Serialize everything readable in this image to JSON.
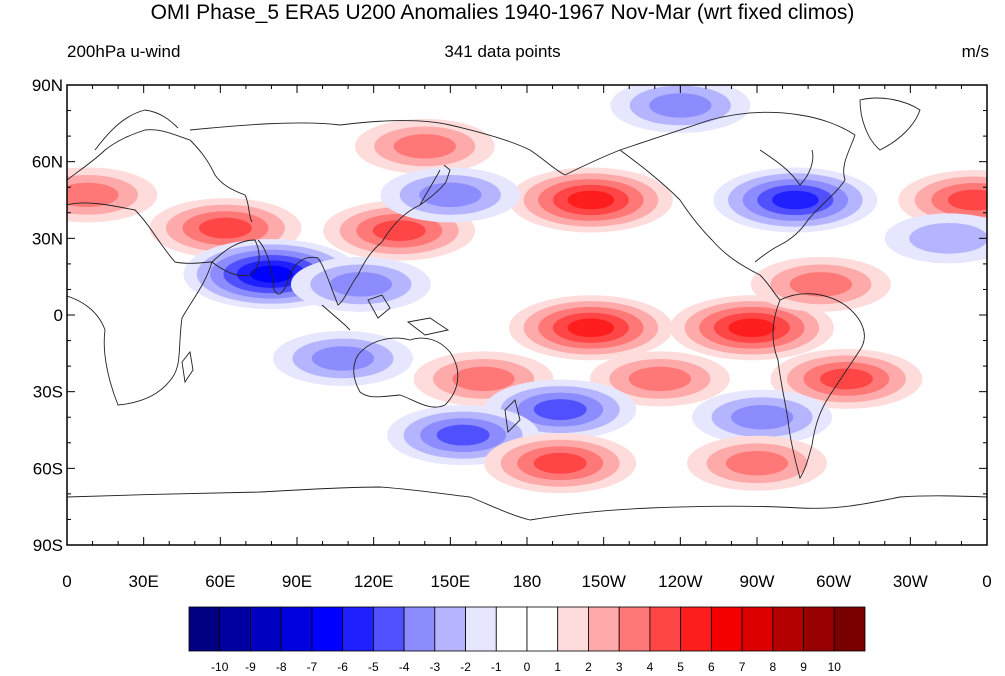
{
  "title": "OMI Phase_5 ERA5 U200 Anomalies 1940-1967 Nov-Mar (wrt fixed climos)",
  "subtitle_left": "200hPa u-wind",
  "subtitle_center": "341 data points",
  "subtitle_right": "m/s",
  "map": {
    "projection": "cylindrical equidistant",
    "lon_range": [
      0,
      360
    ],
    "lat_range": [
      -90,
      90
    ],
    "lat_ticks": [
      "90N",
      "60N",
      "30N",
      "0",
      "30S",
      "60S",
      "90S"
    ],
    "lon_ticks": [
      "0",
      "30E",
      "60E",
      "90E",
      "120E",
      "150E",
      "180",
      "150W",
      "120W",
      "90W",
      "60W",
      "30W",
      "0"
    ],
    "anomalies": [
      {
        "lon": 8,
        "lat": 47,
        "value": 3
      },
      {
        "lon": 355,
        "lat": 45,
        "value": 4
      },
      {
        "lon": 62,
        "lat": 34,
        "value": 4
      },
      {
        "lon": 130,
        "lat": 33,
        "value": 4
      },
      {
        "lon": 140,
        "lat": 66,
        "value": 3
      },
      {
        "lon": 205,
        "lat": 45,
        "value": 5
      },
      {
        "lon": 285,
        "lat": 45,
        "value": -5
      },
      {
        "lon": 150,
        "lat": 47,
        "value": -3
      },
      {
        "lon": 240,
        "lat": 82,
        "value": -3
      },
      {
        "lon": 80,
        "lat": 16,
        "value": -6
      },
      {
        "lon": 115,
        "lat": 12,
        "value": -3
      },
      {
        "lon": 345,
        "lat": 30,
        "value": -2
      },
      {
        "lon": 205,
        "lat": -5,
        "value": 5
      },
      {
        "lon": 268,
        "lat": -5,
        "value": 5
      },
      {
        "lon": 295,
        "lat": 12,
        "value": 3
      },
      {
        "lon": 163,
        "lat": -25,
        "value": 3
      },
      {
        "lon": 232,
        "lat": -25,
        "value": 3
      },
      {
        "lon": 305,
        "lat": -25,
        "value": 4
      },
      {
        "lon": 108,
        "lat": -17,
        "value": -3
      },
      {
        "lon": 193,
        "lat": -37,
        "value": -4
      },
      {
        "lon": 155,
        "lat": -47,
        "value": -4
      },
      {
        "lon": 272,
        "lat": -40,
        "value": -3
      },
      {
        "lon": 193,
        "lat": -58,
        "value": 4
      },
      {
        "lon": 270,
        "lat": -58,
        "value": 3
      }
    ]
  },
  "colorbar": {
    "labels": [
      "-10",
      "-9",
      "-8",
      "-7",
      "-6",
      "-5",
      "-4",
      "-3",
      "-2",
      "-1",
      "0",
      "1",
      "2",
      "3",
      "4",
      "5",
      "6",
      "7",
      "8",
      "9",
      "10"
    ],
    "colors": [
      "#000080",
      "#0000a0",
      "#0000c0",
      "#0000e0",
      "#0000ff",
      "#2020ff",
      "#5050ff",
      "#8c8cff",
      "#b4b4ff",
      "#e6e6ff",
      "#ffffff",
      "#ffffff",
      "#ffdcdc",
      "#ffaaaa",
      "#ff7878",
      "#ff4646",
      "#ff1e1e",
      "#f50000",
      "#dc0000",
      "#b40000",
      "#960000",
      "#780000"
    ]
  }
}
